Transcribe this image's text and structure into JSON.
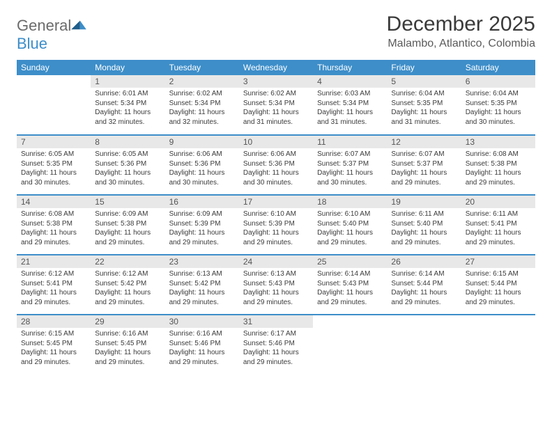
{
  "logo": {
    "general": "General",
    "blue": "Blue"
  },
  "title": "December 2025",
  "location": "Malambo, Atlantico, Colombia",
  "colors": {
    "header_bg": "#3d8ec9",
    "header_text": "#ffffff",
    "daynum_bg": "#e8e8e8",
    "row_border": "#3d8ec9",
    "body_text": "#3a3a3a",
    "logo_gray": "#6b6b6b",
    "logo_blue": "#3d8ec9"
  },
  "weekdays": [
    "Sunday",
    "Monday",
    "Tuesday",
    "Wednesday",
    "Thursday",
    "Friday",
    "Saturday"
  ],
  "weeks": [
    [
      null,
      {
        "n": "1",
        "sr": "6:01 AM",
        "ss": "5:34 PM",
        "dl": "11 hours and 32 minutes."
      },
      {
        "n": "2",
        "sr": "6:02 AM",
        "ss": "5:34 PM",
        "dl": "11 hours and 32 minutes."
      },
      {
        "n": "3",
        "sr": "6:02 AM",
        "ss": "5:34 PM",
        "dl": "11 hours and 31 minutes."
      },
      {
        "n": "4",
        "sr": "6:03 AM",
        "ss": "5:34 PM",
        "dl": "11 hours and 31 minutes."
      },
      {
        "n": "5",
        "sr": "6:04 AM",
        "ss": "5:35 PM",
        "dl": "11 hours and 31 minutes."
      },
      {
        "n": "6",
        "sr": "6:04 AM",
        "ss": "5:35 PM",
        "dl": "11 hours and 30 minutes."
      }
    ],
    [
      {
        "n": "7",
        "sr": "6:05 AM",
        "ss": "5:35 PM",
        "dl": "11 hours and 30 minutes."
      },
      {
        "n": "8",
        "sr": "6:05 AM",
        "ss": "5:36 PM",
        "dl": "11 hours and 30 minutes."
      },
      {
        "n": "9",
        "sr": "6:06 AM",
        "ss": "5:36 PM",
        "dl": "11 hours and 30 minutes."
      },
      {
        "n": "10",
        "sr": "6:06 AM",
        "ss": "5:36 PM",
        "dl": "11 hours and 30 minutes."
      },
      {
        "n": "11",
        "sr": "6:07 AM",
        "ss": "5:37 PM",
        "dl": "11 hours and 30 minutes."
      },
      {
        "n": "12",
        "sr": "6:07 AM",
        "ss": "5:37 PM",
        "dl": "11 hours and 29 minutes."
      },
      {
        "n": "13",
        "sr": "6:08 AM",
        "ss": "5:38 PM",
        "dl": "11 hours and 29 minutes."
      }
    ],
    [
      {
        "n": "14",
        "sr": "6:08 AM",
        "ss": "5:38 PM",
        "dl": "11 hours and 29 minutes."
      },
      {
        "n": "15",
        "sr": "6:09 AM",
        "ss": "5:38 PM",
        "dl": "11 hours and 29 minutes."
      },
      {
        "n": "16",
        "sr": "6:09 AM",
        "ss": "5:39 PM",
        "dl": "11 hours and 29 minutes."
      },
      {
        "n": "17",
        "sr": "6:10 AM",
        "ss": "5:39 PM",
        "dl": "11 hours and 29 minutes."
      },
      {
        "n": "18",
        "sr": "6:10 AM",
        "ss": "5:40 PM",
        "dl": "11 hours and 29 minutes."
      },
      {
        "n": "19",
        "sr": "6:11 AM",
        "ss": "5:40 PM",
        "dl": "11 hours and 29 minutes."
      },
      {
        "n": "20",
        "sr": "6:11 AM",
        "ss": "5:41 PM",
        "dl": "11 hours and 29 minutes."
      }
    ],
    [
      {
        "n": "21",
        "sr": "6:12 AM",
        "ss": "5:41 PM",
        "dl": "11 hours and 29 minutes."
      },
      {
        "n": "22",
        "sr": "6:12 AM",
        "ss": "5:42 PM",
        "dl": "11 hours and 29 minutes."
      },
      {
        "n": "23",
        "sr": "6:13 AM",
        "ss": "5:42 PM",
        "dl": "11 hours and 29 minutes."
      },
      {
        "n": "24",
        "sr": "6:13 AM",
        "ss": "5:43 PM",
        "dl": "11 hours and 29 minutes."
      },
      {
        "n": "25",
        "sr": "6:14 AM",
        "ss": "5:43 PM",
        "dl": "11 hours and 29 minutes."
      },
      {
        "n": "26",
        "sr": "6:14 AM",
        "ss": "5:44 PM",
        "dl": "11 hours and 29 minutes."
      },
      {
        "n": "27",
        "sr": "6:15 AM",
        "ss": "5:44 PM",
        "dl": "11 hours and 29 minutes."
      }
    ],
    [
      {
        "n": "28",
        "sr": "6:15 AM",
        "ss": "5:45 PM",
        "dl": "11 hours and 29 minutes."
      },
      {
        "n": "29",
        "sr": "6:16 AM",
        "ss": "5:45 PM",
        "dl": "11 hours and 29 minutes."
      },
      {
        "n": "30",
        "sr": "6:16 AM",
        "ss": "5:46 PM",
        "dl": "11 hours and 29 minutes."
      },
      {
        "n": "31",
        "sr": "6:17 AM",
        "ss": "5:46 PM",
        "dl": "11 hours and 29 minutes."
      },
      null,
      null,
      null
    ]
  ],
  "labels": {
    "sunrise": "Sunrise: ",
    "sunset": "Sunset: ",
    "daylight": "Daylight: "
  }
}
